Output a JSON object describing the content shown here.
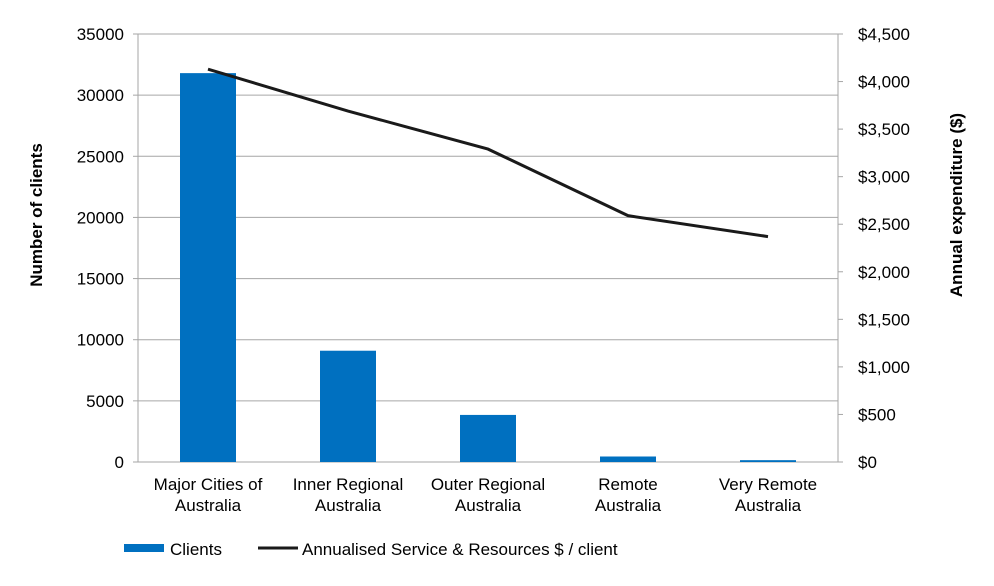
{
  "chart_data": {
    "type": "bar",
    "categories": [
      [
        "Major Cities of",
        "Australia"
      ],
      [
        "Inner Regional",
        "Australia"
      ],
      [
        "Outer Regional",
        "Australia"
      ],
      [
        "Remote",
        "Australia"
      ],
      [
        "Very Remote",
        "Australia"
      ]
    ],
    "series": [
      {
        "name": "Clients",
        "type": "bar",
        "axis": "left",
        "color": "#0070c0",
        "values": [
          31800,
          9100,
          3850,
          450,
          150
        ]
      },
      {
        "name": "Annualised Service & Resources $ / client",
        "type": "line",
        "axis": "right",
        "color": "#1a1a1a",
        "values": [
          4130,
          3690,
          3290,
          2590,
          2370
        ]
      }
    ],
    "left_axis": {
      "label": "Number of clients",
      "ylim": [
        0,
        35000
      ],
      "ticks": [
        0,
        5000,
        10000,
        15000,
        20000,
        25000,
        30000,
        35000
      ],
      "tick_labels": [
        "0",
        "5000",
        "10000",
        "15000",
        "20000",
        "25000",
        "30000",
        "35000"
      ]
    },
    "right_axis": {
      "label": "Annual expenditure ($)",
      "ylim": [
        0,
        4500
      ],
      "ticks": [
        0,
        500,
        1000,
        1500,
        2000,
        2500,
        3000,
        3500,
        4000,
        4500
      ],
      "tick_labels": [
        "$0",
        "$500",
        "$1,000",
        "$1,500",
        "$2,000",
        "$2,500",
        "$3,000",
        "$3,500",
        "$4,000",
        "$4,500"
      ]
    },
    "grid": true,
    "legend_position": "bottom-left",
    "title": "",
    "xlabel": ""
  }
}
